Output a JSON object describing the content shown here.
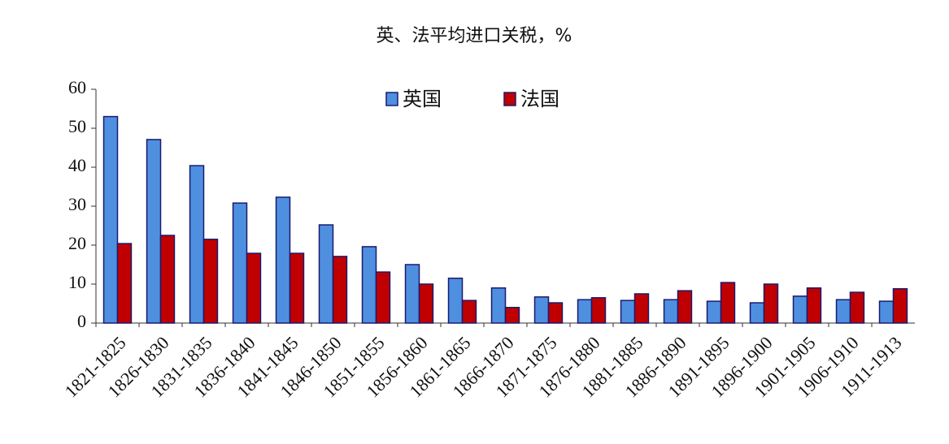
{
  "chart_data": {
    "type": "bar",
    "title": "英、法平均进口关税，%",
    "categories": [
      "1821-1825",
      "1826-1830",
      "1831-1835",
      "1836-1840",
      "1841-1845",
      "1846-1850",
      "1851-1855",
      "1856-1860",
      "1861-1865",
      "1866-1870",
      "1871-1875",
      "1876-1880",
      "1881-1885",
      "1886-1890",
      "1891-1895",
      "1896-1900",
      "1901-1905",
      "1906-1910",
      "1911-1913"
    ],
    "series": [
      {
        "name": "英国",
        "color": "#4f8fe0",
        "values": [
          53,
          47.1,
          40.4,
          30.8,
          32.3,
          25.2,
          19.6,
          15,
          11.5,
          9,
          6.7,
          6,
          5.8,
          6,
          5.6,
          5.2,
          6.9,
          6,
          5.6
        ]
      },
      {
        "name": "法国",
        "color": "#c00000",
        "values": [
          20.4,
          22.5,
          21.5,
          17.9,
          17.9,
          17.1,
          13.1,
          10,
          5.8,
          4,
          5.2,
          6.5,
          7.5,
          8.3,
          10.4,
          10,
          9,
          7.9,
          8.8
        ]
      }
    ],
    "ylim": [
      0,
      60
    ],
    "yticks": [
      0,
      10,
      20,
      30,
      40,
      50,
      60
    ],
    "grid": false,
    "legend": "top"
  }
}
